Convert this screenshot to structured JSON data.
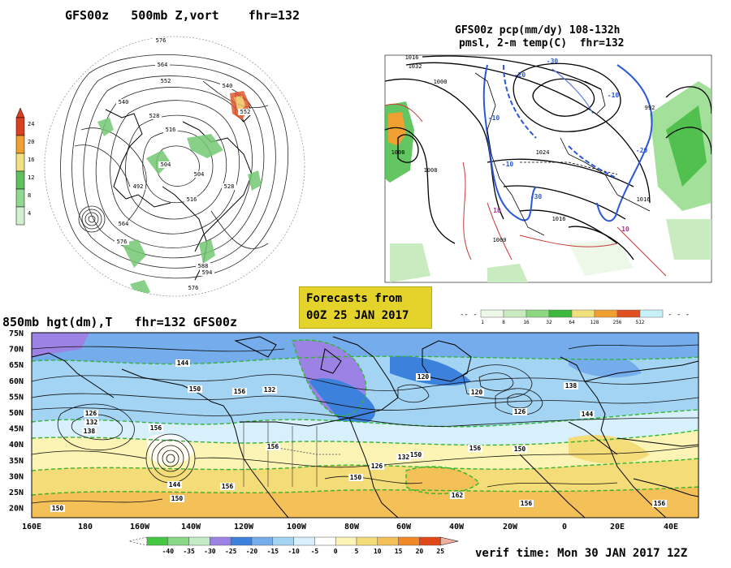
{
  "panel1": {
    "title": "GFS00z   500mb Z,vort    fhr=132",
    "height_labels": [
      "576",
      "564",
      "552",
      "540",
      "528",
      "516",
      "504",
      "492",
      "504",
      "516",
      "528",
      "552",
      "564",
      "576",
      "588",
      "594",
      "576",
      "540"
    ],
    "colorbar": {
      "labels": [
        "24",
        "20",
        "16",
        "12",
        "8",
        "4"
      ],
      "colors": [
        "#d84020",
        "#f0a030",
        "#f0e080",
        "#60c060",
        "#90d890",
        "#d0f0d0"
      ]
    }
  },
  "panel2": {
    "title_line1": "GFS00z pcp(mm/dy) 108-132h",
    "title_line2": "pmsl, 2-m temp(C)  fhr=132",
    "pressure_labels": [
      "1016",
      "1032",
      "1000",
      "1008",
      "1024",
      "1016",
      "1016",
      "1000",
      "1008",
      "992"
    ],
    "temp_labels": [
      "-10",
      "-20",
      "-30",
      "-10",
      "-20",
      "10",
      "10",
      "-10",
      "-30"
    ],
    "colorbar": {
      "labels": [
        "1",
        "8",
        "16",
        "32",
        "64",
        "128",
        "256",
        "512"
      ],
      "colors": [
        "#eef8e8",
        "#c8ecc0",
        "#8cd880",
        "#3cb83c",
        "#f0e07c",
        "#f0a030",
        "#e05020",
        "#c8f0f8"
      ]
    }
  },
  "forecast_box": {
    "line1": "Forecasts from",
    "line2": "00Z 25 JAN 2017"
  },
  "panel3": {
    "title": "850mb hgt(dm),T   fhr=132 GFS00z",
    "lat_labels": [
      "75N",
      "70N",
      "65N",
      "60N",
      "55N",
      "50N",
      "45N",
      "40N",
      "35N",
      "30N",
      "25N",
      "20N"
    ],
    "lon_labels": [
      "160E",
      "180",
      "160W",
      "140W",
      "120W",
      "100W",
      "80W",
      "60W",
      "40W",
      "20W",
      "0",
      "20E",
      "40E"
    ],
    "contour_labels": [
      "144",
      "150",
      "156",
      "132",
      "126",
      "132",
      "138",
      "156",
      "144",
      "150",
      "156",
      "120",
      "120",
      "126",
      "138",
      "144",
      "156",
      "150",
      "150",
      "162",
      "156",
      "150",
      "150",
      "132",
      "126",
      "156",
      "156"
    ],
    "colorbar": {
      "labels": [
        "-40",
        "-35",
        "-30",
        "-25",
        "-20",
        "-15",
        "-10",
        "-5",
        "0",
        "5",
        "10",
        "15",
        "20",
        "25"
      ],
      "colors": [
        "#44c844",
        "#88d888",
        "#c4ecc4",
        "#9c82e4",
        "#3c82dc",
        "#74acec",
        "#a4d4f4",
        "#d8f0fc",
        "#ffffff",
        "#fcf4b4",
        "#f4dc78",
        "#f4c058",
        "#f08828",
        "#e04818"
      ]
    }
  },
  "verif_time": "verif time: Mon 30 JAN 2017 12Z"
}
